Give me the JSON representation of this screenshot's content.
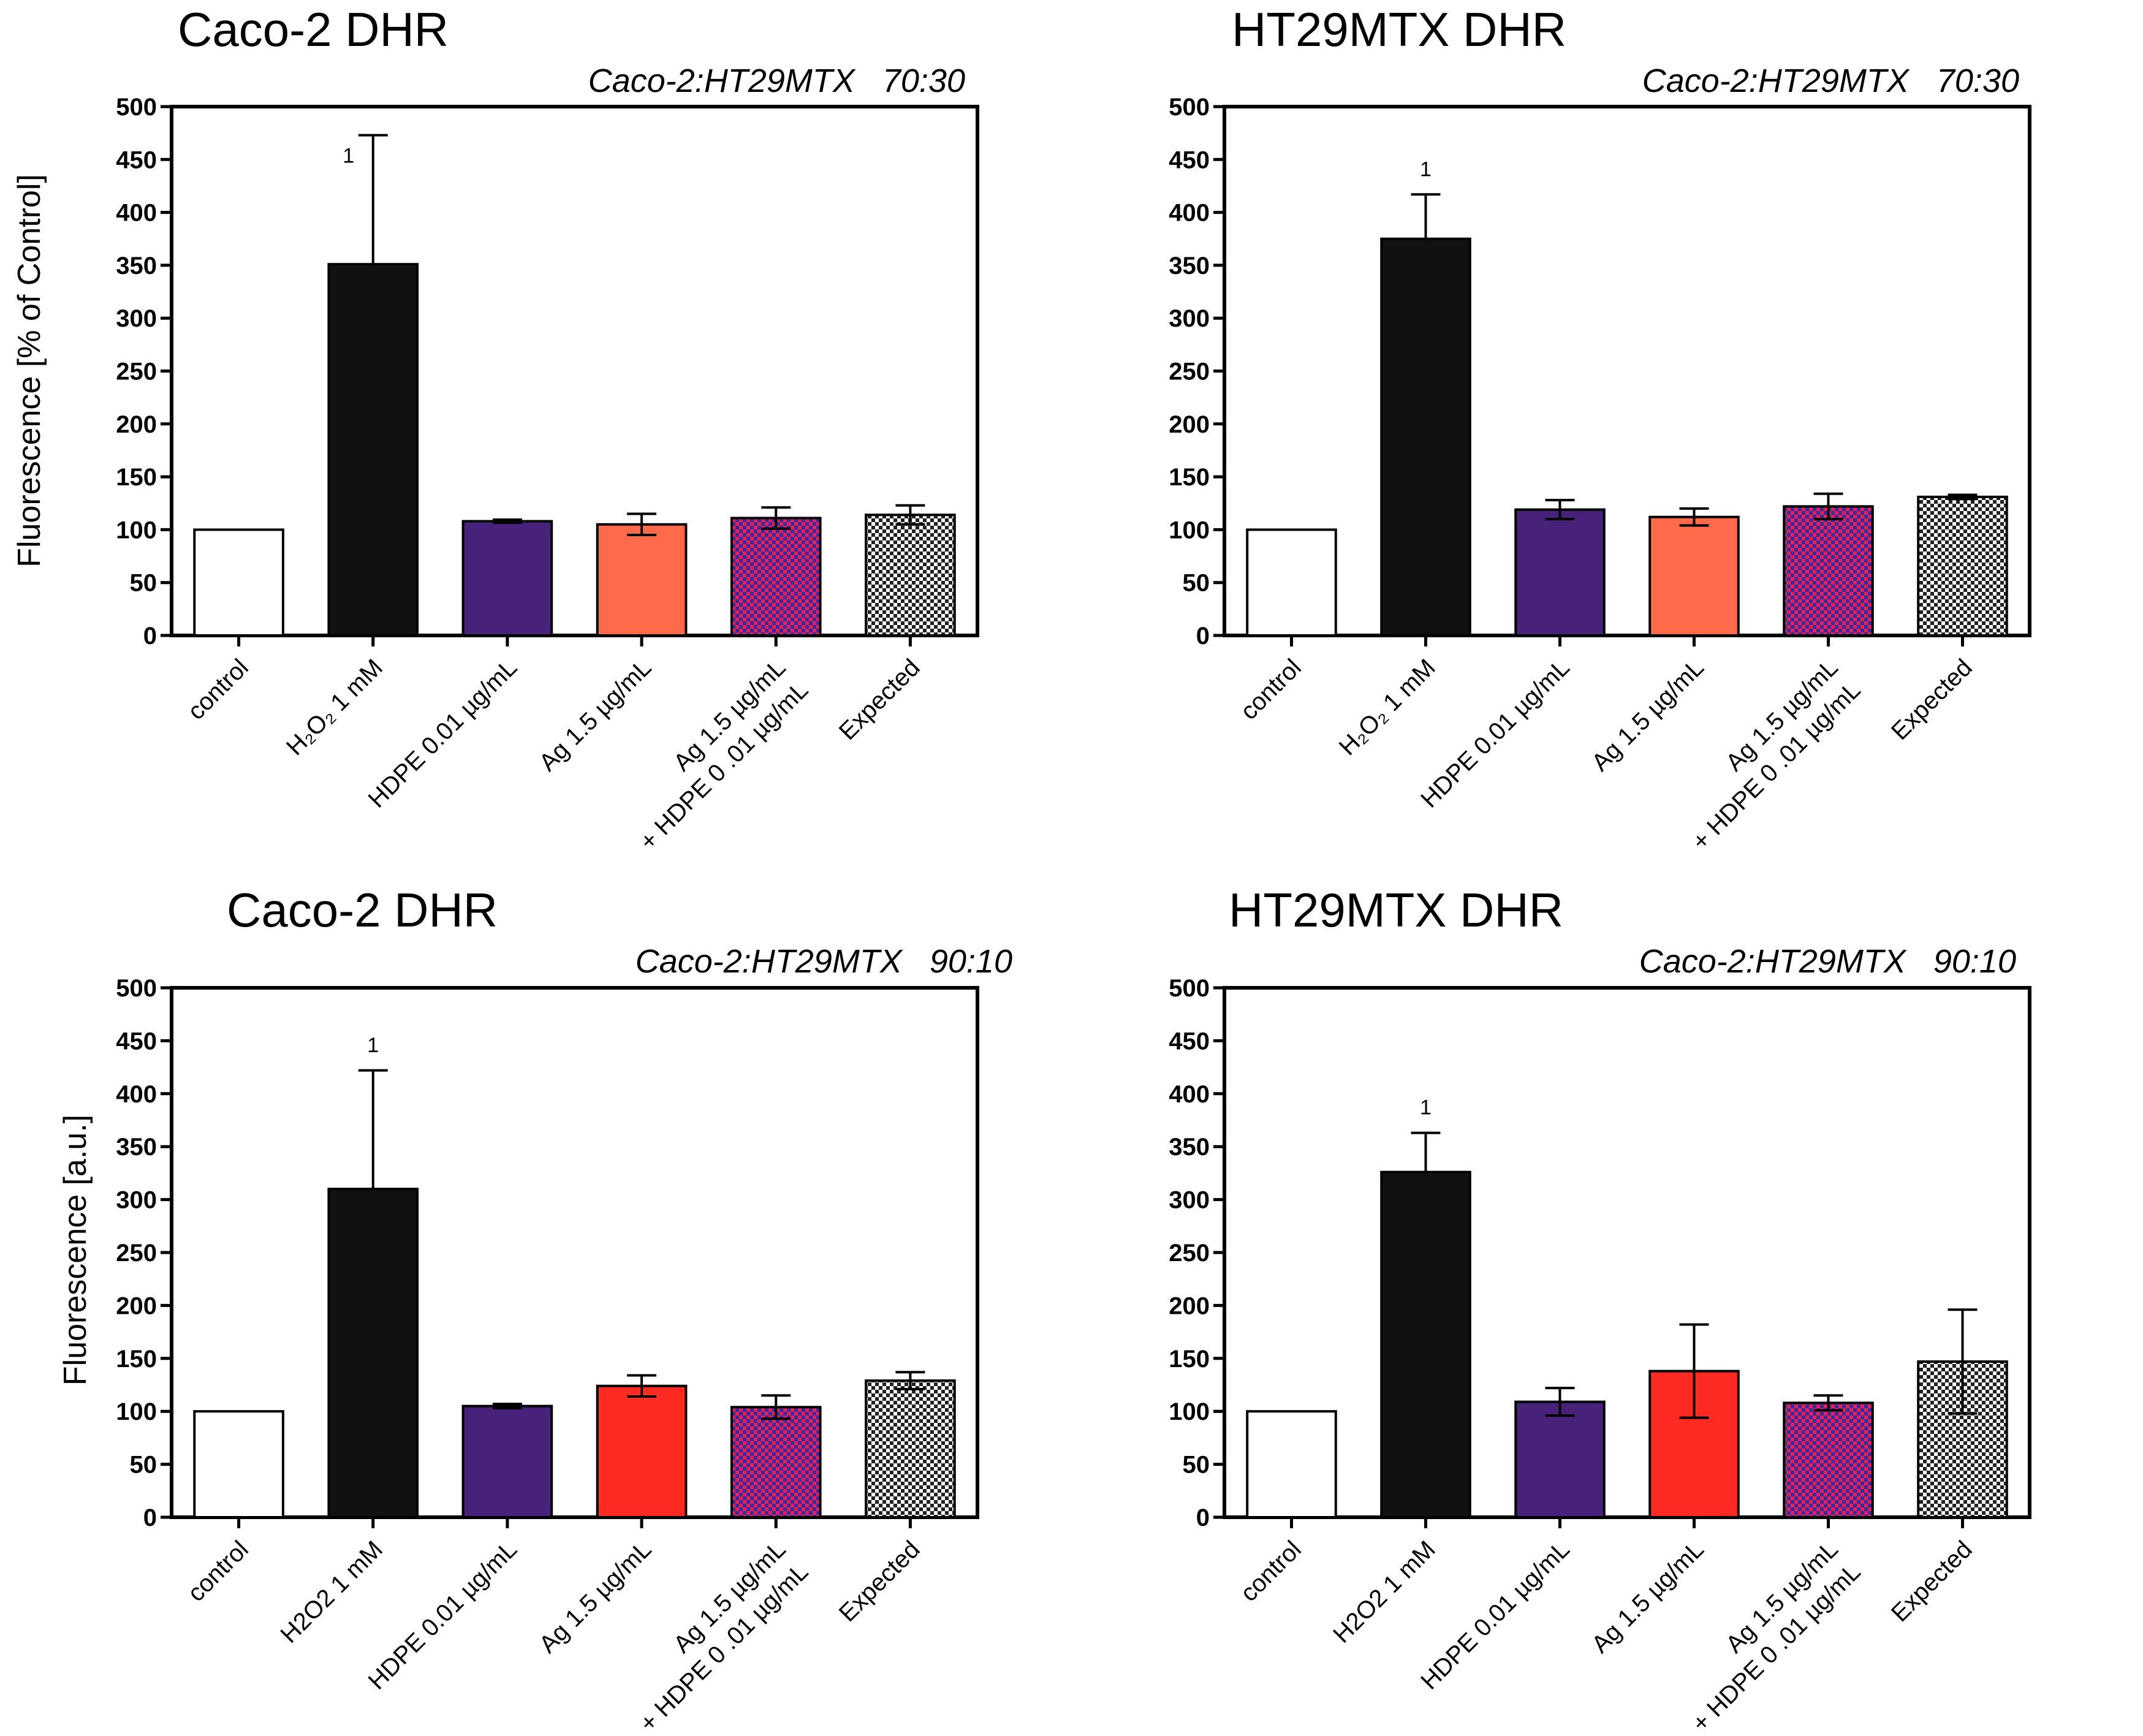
{
  "colors": {
    "control": "#ffffff",
    "h2o2": "#111111",
    "hdpe": "#47217a",
    "ag_7030": "#ff6a4a",
    "ag_9010": "#ff2a22",
    "combo_a": "#3a2a9c",
    "combo_b": "#e3205a",
    "expected_a": "#ffffff",
    "expected_b": "#222222"
  },
  "chart_data": [
    {
      "type": "bar",
      "title": "Caco-2 DHR",
      "subtitle": "Caco-2:HT29MTX   70:30",
      "ylabel": "Fluorescence [% of Control]",
      "xlabel": "",
      "ylim": [
        0,
        500
      ],
      "yticks": [
        "0",
        "50",
        "100",
        "150",
        "200",
        "250",
        "300",
        "350",
        "400",
        "450",
        "500"
      ],
      "categories": [
        [
          "control"
        ],
        [
          "H₂O₂ 1 mM"
        ],
        [
          "HDPE 0.01 µg/mL"
        ],
        [
          "Ag 1.5 µg/mL"
        ],
        [
          "Ag 1.5 µg/mL",
          "+ HDPE 0 .01 µg/mL"
        ],
        [
          "Expected"
        ]
      ],
      "values": [
        100,
        351,
        108,
        105,
        111,
        114
      ],
      "errors": [
        [
          0,
          0
        ],
        [
          0,
          122
        ],
        [
          1.5,
          1.5
        ],
        [
          10,
          10
        ],
        [
          10,
          10
        ],
        [
          9,
          9
        ]
      ],
      "annotations": [
        {
          "category_index": 1,
          "text": "1"
        }
      ]
    },
    {
      "type": "bar",
      "title": "HT29MTX DHR",
      "subtitle": "Caco-2:HT29MTX   70:30",
      "ylabel": "",
      "xlabel": "",
      "ylim": [
        0,
        500
      ],
      "yticks": [
        "0",
        "50",
        "100",
        "150",
        "200",
        "250",
        "300",
        "350",
        "400",
        "450",
        "500"
      ],
      "categories": [
        [
          "control"
        ],
        [
          "H₂O₂ 1 mM"
        ],
        [
          "HDPE 0.01 µg/mL"
        ],
        [
          "Ag 1.5 µg/mL"
        ],
        [
          "Ag 1.5 µg/mL",
          "+ HDPE 0 .01 µg/mL"
        ],
        [
          "Expected"
        ]
      ],
      "values": [
        100,
        375,
        119,
        112,
        122,
        131
      ],
      "errors": [
        [
          0,
          0
        ],
        [
          0,
          42
        ],
        [
          9,
          9
        ],
        [
          8,
          8
        ],
        [
          12,
          12
        ],
        [
          2,
          2
        ]
      ],
      "annotations": [
        {
          "category_index": 1,
          "text": "1"
        }
      ]
    },
    {
      "type": "bar",
      "title": "Caco-2 DHR",
      "subtitle": "Caco-2:HT29MTX   90:10",
      "ylabel": "Fluorescence [a.u.]",
      "xlabel": "",
      "ylim": [
        0,
        500
      ],
      "yticks": [
        "0",
        "50",
        "100",
        "150",
        "200",
        "250",
        "300",
        "350",
        "400",
        "450",
        "500"
      ],
      "categories": [
        [
          "control"
        ],
        [
          "H2O2 1 mM"
        ],
        [
          "HDPE 0.01 µg/mL"
        ],
        [
          "Ag 1.5 µg/mL"
        ],
        [
          "Ag 1.5 µg/mL",
          "+ HDPE 0 .01 µg/mL"
        ],
        [
          "Expected"
        ]
      ],
      "values": [
        100,
        310,
        105,
        124,
        104,
        129
      ],
      "errors": [
        [
          0,
          0
        ],
        [
          0,
          112
        ],
        [
          2,
          2
        ],
        [
          10,
          10
        ],
        [
          11,
          11
        ],
        [
          8,
          8
        ]
      ],
      "annotations": [
        {
          "category_index": 1,
          "text": "1"
        }
      ]
    },
    {
      "type": "bar",
      "title": "HT29MTX DHR",
      "subtitle": "Caco-2:HT29MTX   90:10",
      "ylabel": "",
      "xlabel": "",
      "ylim": [
        0,
        500
      ],
      "yticks": [
        "0",
        "50",
        "100",
        "150",
        "200",
        "250",
        "300",
        "350",
        "400",
        "450",
        "500"
      ],
      "categories": [
        [
          "control"
        ],
        [
          "H2O2 1 mM"
        ],
        [
          "HDPE 0.01 µg/mL"
        ],
        [
          "Ag 1.5 µg/mL"
        ],
        [
          "Ag 1.5 µg/mL",
          "+ HDPE 0 .01 µg/mL"
        ],
        [
          "Expected"
        ]
      ],
      "values": [
        100,
        326,
        109,
        138,
        108,
        147
      ],
      "errors": [
        [
          0,
          0
        ],
        [
          0,
          37
        ],
        [
          13,
          13
        ],
        [
          44,
          44
        ],
        [
          7,
          7
        ],
        [
          49,
          49
        ]
      ],
      "annotations": [
        {
          "category_index": 1,
          "text": "1"
        }
      ]
    }
  ]
}
